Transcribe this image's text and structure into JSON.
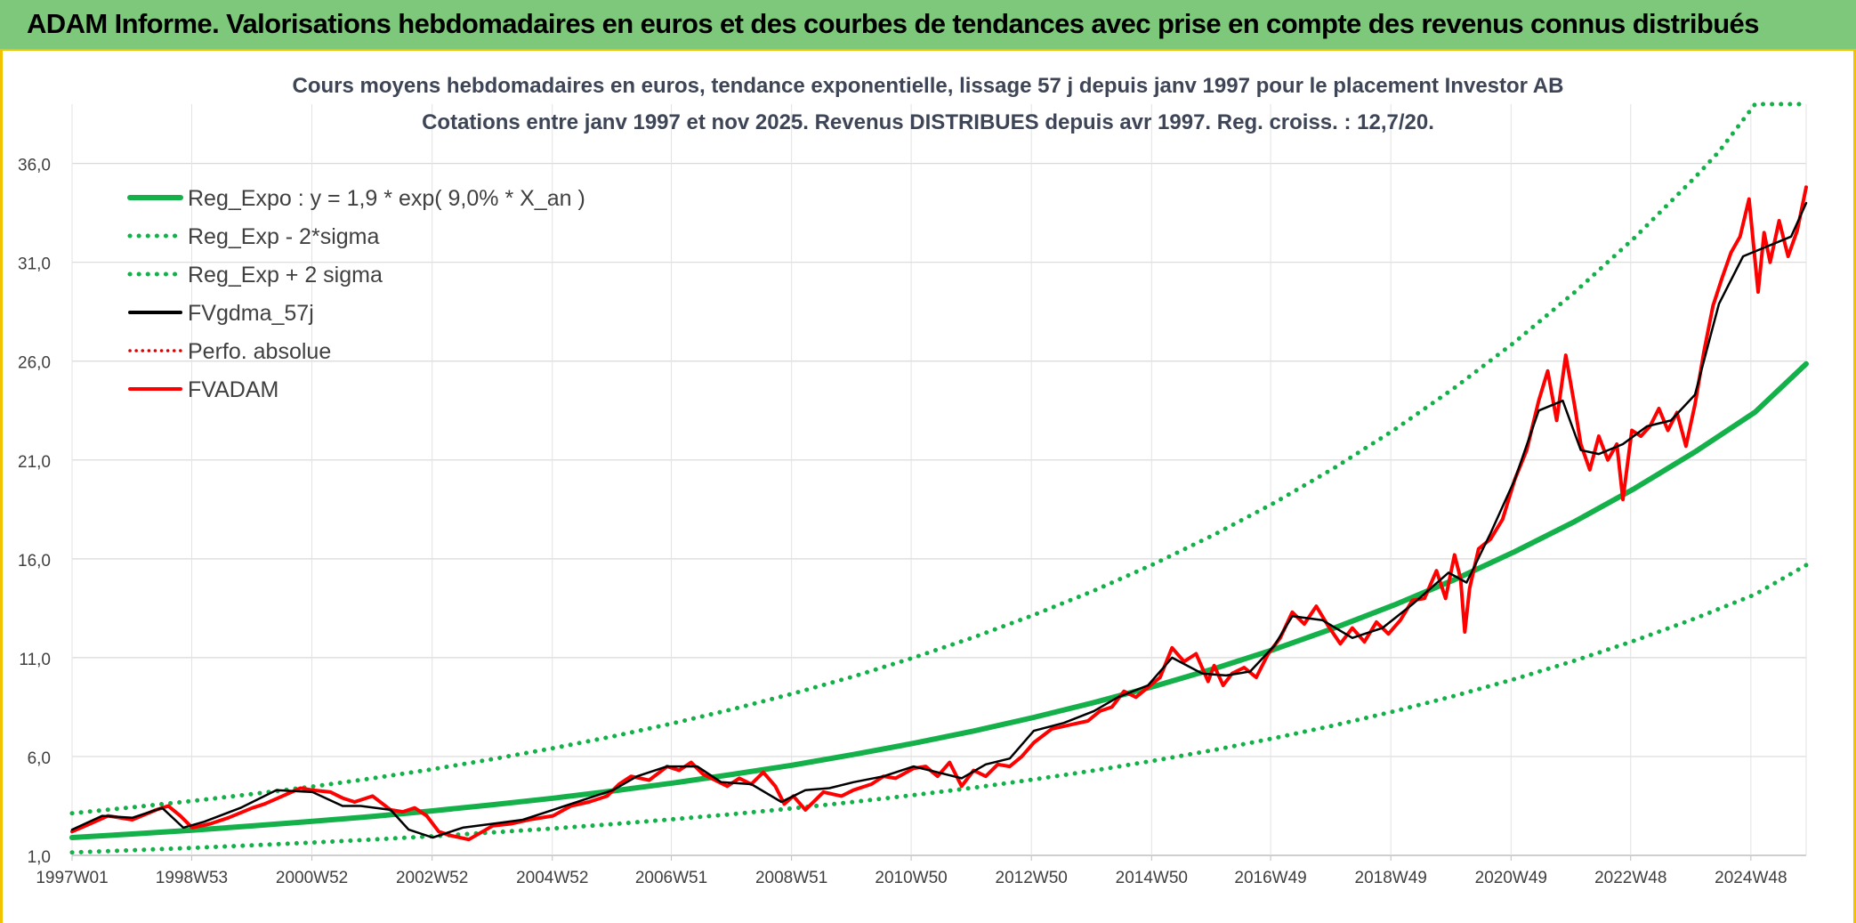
{
  "header": {
    "title": "ADAM Informe. Valorisations hebdomadaires en euros et des courbes de tendances avec prise en compte des revenus connus distribués"
  },
  "chart_data": {
    "type": "line",
    "title": "Cours moyens hebdomadaires en euros, tendance exponentielle, lissage 57 j depuis janv 1997 pour le placement Investor AB",
    "subtitle": "Cotations entre janv 1997 et nov 2025. Revenus DISTRIBUES depuis avr 1997. Reg. croiss. : 12,7/20.",
    "xlabel": "",
    "ylabel": "",
    "ylim": [
      1.0,
      39.0
    ],
    "yticks": [
      1.0,
      6.0,
      11.0,
      16.0,
      21.0,
      26.0,
      31.0,
      36.0
    ],
    "ytick_labels": [
      "1,0",
      "6,0",
      "11,0",
      "16,0",
      "21,0",
      "26,0",
      "31,0",
      "36,0"
    ],
    "xlim": [
      1997.0,
      2025.85
    ],
    "xtick_positions": [
      1997.0,
      1998.99,
      2000.99,
      2002.99,
      2004.99,
      2006.97,
      2008.97,
      2010.96,
      2012.96,
      2014.96,
      2016.94,
      2018.94,
      2020.94,
      2022.93,
      2024.93
    ],
    "xtick_labels": [
      "1997W01",
      "1998W53",
      "2000W52",
      "2002W52",
      "2004W52",
      "2006W51",
      "2008W51",
      "2010W50",
      "2012W50",
      "2014W50",
      "2016W49",
      "2018W49",
      "2020W49",
      "2022W48",
      "2024W48"
    ],
    "grid": true,
    "legend_position": "top-left",
    "series": [
      {
        "name": "Reg_Expo : y = 1,9 * exp( 9,0% *  X_an )",
        "kind": "reg",
        "color": "#14b14b",
        "style": "solid",
        "x": [
          1997,
          1998,
          1999,
          2000,
          2001,
          2002,
          2003,
          2004,
          2005,
          2006,
          2007,
          2008,
          2009,
          2010,
          2011,
          2012,
          2013,
          2014,
          2015,
          2016,
          2017,
          2018,
          2019,
          2020,
          2021,
          2022,
          2023,
          2024,
          2025,
          2025.85
        ],
        "y": [
          1.9,
          2.08,
          2.27,
          2.49,
          2.72,
          2.97,
          3.25,
          3.56,
          3.89,
          4.26,
          4.66,
          5.1,
          5.57,
          6.1,
          6.67,
          7.29,
          7.98,
          8.73,
          9.55,
          10.44,
          11.42,
          12.5,
          13.67,
          14.95,
          16.36,
          17.89,
          19.57,
          21.41,
          23.42,
          25.86
        ]
      },
      {
        "name": "Reg_Exp - 2*sigma",
        "kind": "low",
        "color": "#14b14b",
        "style": "dotted",
        "x": [
          1997,
          1998,
          1999,
          2000,
          2001,
          2002,
          2003,
          2004,
          2005,
          2006,
          2007,
          2008,
          2009,
          2010,
          2011,
          2012,
          2013,
          2014,
          2015,
          2016,
          2017,
          2018,
          2019,
          2020,
          2021,
          2022,
          2023,
          2024,
          2025,
          2025.85
        ],
        "y": [
          1.15,
          1.26,
          1.38,
          1.51,
          1.65,
          1.8,
          1.97,
          2.16,
          2.36,
          2.58,
          2.83,
          3.09,
          3.38,
          3.7,
          4.05,
          4.42,
          4.84,
          5.29,
          5.79,
          6.33,
          6.93,
          7.58,
          8.29,
          9.07,
          9.92,
          10.85,
          11.87,
          12.98,
          14.2,
          15.68
        ]
      },
      {
        "name": "Reg_Exp + 2 sigma",
        "kind": "high",
        "color": "#14b14b",
        "style": "dotted",
        "x": [
          1997,
          1998,
          1999,
          2000,
          2001,
          2002,
          2003,
          2004,
          2005,
          2006,
          2007,
          2008,
          2009,
          2010,
          2011,
          2012,
          2013,
          2014,
          2015,
          2016,
          2017,
          2018,
          2019,
          2020,
          2021,
          2022,
          2023,
          2024,
          2024.4,
          2025.0,
          2025.85
        ],
        "y": [
          3.13,
          3.43,
          3.75,
          4.1,
          4.48,
          4.9,
          5.36,
          5.87,
          6.42,
          7.02,
          7.68,
          8.4,
          9.19,
          10.05,
          11.0,
          12.03,
          13.16,
          14.39,
          15.74,
          17.22,
          18.83,
          20.6,
          22.53,
          24.65,
          26.96,
          29.49,
          32.26,
          35.29,
          36.6,
          39.0,
          39.0
        ]
      },
      {
        "name": "FVgdma_57j",
        "kind": "ma",
        "color": "#000000",
        "style": "solid",
        "x": [
          1997.0,
          1997.5,
          1998.0,
          1998.5,
          1998.85,
          1999.2,
          1999.8,
          2000.4,
          2001.0,
          2001.5,
          2001.8,
          2002.3,
          2002.6,
          2003.0,
          2003.5,
          2004.0,
          2004.5,
          2005.0,
          2005.5,
          2006.0,
          2006.4,
          2006.9,
          2007.4,
          2007.8,
          2008.3,
          2008.8,
          2009.2,
          2009.6,
          2010.0,
          2010.5,
          2011.0,
          2011.4,
          2011.8,
          2012.2,
          2012.6,
          2013.0,
          2013.5,
          2014.0,
          2014.4,
          2014.9,
          2015.3,
          2015.8,
          2016.2,
          2016.6,
          2017.0,
          2017.3,
          2017.8,
          2018.3,
          2018.8,
          2019.3,
          2019.9,
          2020.2,
          2020.6,
          2021.0,
          2021.4,
          2021.8,
          2022.1,
          2022.4,
          2022.8,
          2023.2,
          2023.6,
          2024.0,
          2024.4,
          2024.8,
          2025.2,
          2025.6,
          2025.85
        ],
        "y": [
          2.3,
          3.0,
          2.9,
          3.4,
          2.4,
          2.7,
          3.4,
          4.3,
          4.2,
          3.5,
          3.5,
          3.3,
          2.3,
          1.9,
          2.4,
          2.6,
          2.8,
          3.3,
          3.8,
          4.3,
          5.0,
          5.5,
          5.5,
          4.7,
          4.6,
          3.7,
          4.3,
          4.4,
          4.7,
          5.0,
          5.5,
          5.2,
          4.9,
          5.6,
          5.9,
          7.3,
          7.7,
          8.3,
          9.0,
          9.6,
          11.0,
          10.2,
          10.1,
          10.3,
          11.6,
          13.1,
          12.9,
          12.0,
          12.5,
          13.7,
          15.3,
          14.8,
          17.3,
          20.0,
          23.5,
          24.0,
          21.5,
          21.3,
          21.8,
          22.7,
          23.0,
          24.3,
          28.9,
          31.3,
          31.8,
          32.3,
          34.0
        ]
      },
      {
        "name": "Perfo. absolue",
        "kind": "perfo",
        "color": "#e00000",
        "style": "dotted",
        "x": [],
        "y": []
      },
      {
        "name": "FVADAM",
        "kind": "price",
        "color": "#ff0000",
        "style": "solid",
        "x": [
          1997.0,
          1997.3,
          1997.6,
          1998.0,
          1998.4,
          1998.6,
          1998.8,
          1999.0,
          1999.3,
          1999.6,
          2000.0,
          2000.2,
          2000.5,
          2000.8,
          2001.0,
          2001.3,
          2001.5,
          2001.7,
          2002.0,
          2002.3,
          2002.5,
          2002.7,
          2002.9,
          2003.1,
          2003.3,
          2003.6,
          2004.0,
          2004.3,
          2004.6,
          2005.0,
          2005.3,
          2005.6,
          2005.9,
          2006.1,
          2006.3,
          2006.6,
          2006.9,
          2007.1,
          2007.3,
          2007.5,
          2007.7,
          2007.9,
          2008.1,
          2008.3,
          2008.5,
          2008.7,
          2008.85,
          2009.0,
          2009.2,
          2009.5,
          2009.8,
          2010.0,
          2010.3,
          2010.5,
          2010.7,
          2011.0,
          2011.2,
          2011.4,
          2011.6,
          2011.8,
          2012.0,
          2012.2,
          2012.4,
          2012.6,
          2012.8,
          2013.0,
          2013.3,
          2013.6,
          2013.9,
          2014.1,
          2014.3,
          2014.5,
          2014.7,
          2014.9,
          2015.1,
          2015.3,
          2015.5,
          2015.7,
          2015.9,
          2016.0,
          2016.15,
          2016.3,
          2016.5,
          2016.7,
          2016.9,
          2017.1,
          2017.3,
          2017.5,
          2017.7,
          2017.9,
          2018.1,
          2018.3,
          2018.5,
          2018.7,
          2018.9,
          2019.1,
          2019.3,
          2019.5,
          2019.7,
          2019.85,
          2020.0,
          2020.1,
          2020.17,
          2020.25,
          2020.4,
          2020.6,
          2020.8,
          2021.0,
          2021.2,
          2021.4,
          2021.55,
          2021.7,
          2021.85,
          2022.0,
          2022.1,
          2022.25,
          2022.4,
          2022.55,
          2022.7,
          2022.8,
          2022.95,
          2023.1,
          2023.25,
          2023.4,
          2023.55,
          2023.7,
          2023.85,
          2024.0,
          2024.15,
          2024.3,
          2024.45,
          2024.6,
          2024.75,
          2024.9,
          2025.05,
          2025.15,
          2025.25,
          2025.4,
          2025.55,
          2025.7,
          2025.85
        ],
        "y": [
          2.2,
          2.6,
          3.0,
          2.8,
          3.3,
          3.5,
          3.0,
          2.4,
          2.6,
          2.9,
          3.4,
          3.6,
          4.0,
          4.4,
          4.3,
          4.2,
          3.9,
          3.7,
          4.0,
          3.3,
          3.2,
          3.4,
          3.0,
          2.2,
          2.0,
          1.8,
          2.5,
          2.6,
          2.8,
          3.0,
          3.5,
          3.7,
          4.0,
          4.6,
          5.0,
          4.8,
          5.5,
          5.3,
          5.7,
          5.1,
          4.8,
          4.5,
          4.9,
          4.6,
          5.2,
          4.5,
          3.6,
          4.0,
          3.3,
          4.2,
          4.0,
          4.3,
          4.6,
          5.0,
          4.9,
          5.4,
          5.5,
          5.0,
          5.7,
          4.5,
          5.3,
          5.0,
          5.6,
          5.5,
          6.0,
          6.7,
          7.4,
          7.6,
          7.8,
          8.3,
          8.5,
          9.3,
          9.0,
          9.5,
          10.0,
          11.5,
          10.8,
          11.2,
          9.8,
          10.6,
          9.6,
          10.2,
          10.5,
          10.0,
          11.2,
          12.0,
          13.3,
          12.7,
          13.6,
          12.6,
          11.7,
          12.5,
          11.8,
          12.8,
          12.2,
          12.9,
          13.9,
          14.0,
          15.4,
          14.0,
          16.2,
          15.0,
          12.3,
          14.5,
          16.5,
          17.0,
          18.0,
          20.0,
          21.5,
          24.0,
          25.5,
          23.0,
          26.3,
          23.7,
          21.8,
          20.5,
          22.2,
          21.0,
          21.8,
          19.0,
          22.5,
          22.2,
          22.7,
          23.6,
          22.5,
          23.4,
          21.7,
          23.8,
          26.5,
          28.8,
          30.2,
          31.5,
          32.3,
          34.2,
          29.5,
          32.5,
          31.0,
          33.1,
          31.3,
          32.6,
          34.8
        ]
      }
    ]
  }
}
